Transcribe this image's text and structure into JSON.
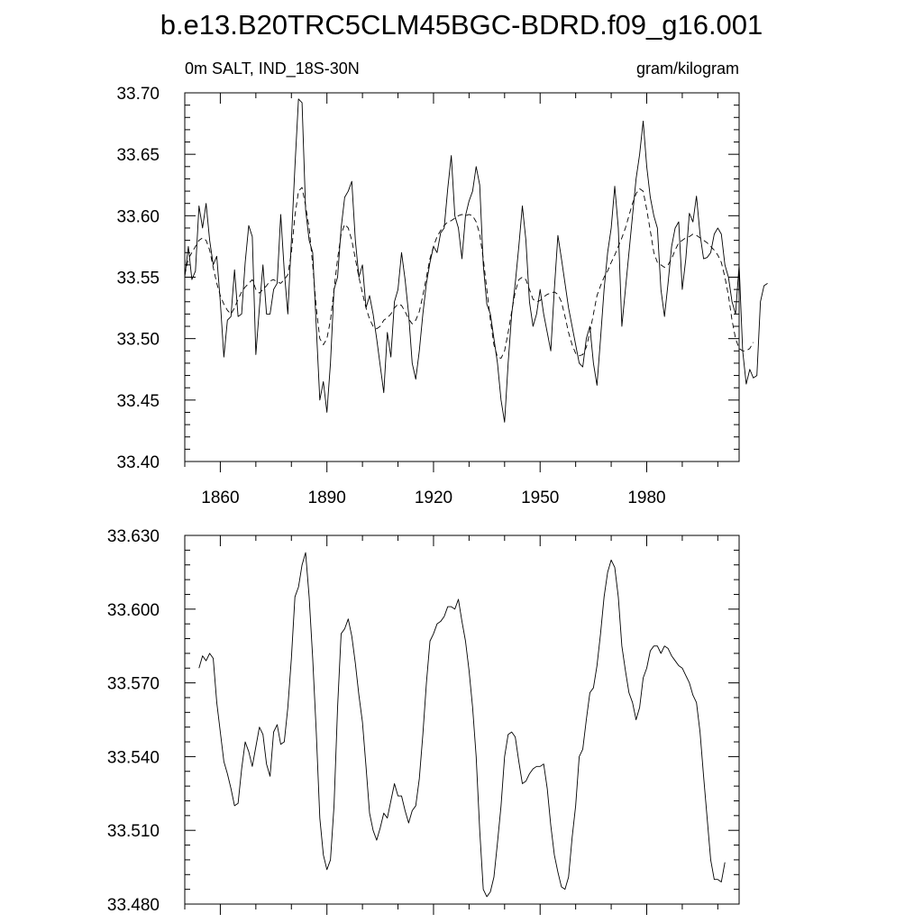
{
  "title": "b.e13.B20TRC5CLM45BGC-BDRD.f09_g16.001",
  "chart_data": [
    {
      "type": "line",
      "subtitle_left": "0m SALT, IND_18S-30N",
      "subtitle_right": "gram/kilogram",
      "xlim": [
        1850,
        2006
      ],
      "ylim": [
        33.4,
        33.7
      ],
      "x_ticks": [
        1860,
        1890,
        1920,
        1950,
        1980
      ],
      "x_tick_labels": [
        "1860",
        "1890",
        "1920",
        "1950",
        "1980"
      ],
      "y_ticks": [
        33.4,
        33.45,
        33.5,
        33.55,
        33.6,
        33.65,
        33.7
      ],
      "y_tick_labels": [
        "33.40",
        "33.45",
        "33.50",
        "33.55",
        "33.60",
        "33.65",
        "33.70"
      ],
      "x_start": 1850,
      "grid": false,
      "series": [
        {
          "style": "solid",
          "values": [
            33.55,
            33.575,
            33.548,
            33.555,
            33.608,
            33.59,
            33.61,
            33.58,
            33.56,
            33.567,
            33.53,
            33.485,
            33.515,
            33.518,
            33.556,
            33.518,
            33.52,
            33.562,
            33.592,
            33.583,
            33.487,
            33.525,
            33.56,
            33.52,
            33.52,
            33.54,
            33.545,
            33.601,
            33.555,
            33.52,
            33.58,
            33.64,
            33.695,
            33.692,
            33.605,
            33.58,
            33.57,
            33.51,
            33.45,
            33.465,
            33.44,
            33.48,
            33.54,
            33.55,
            33.59,
            33.615,
            33.62,
            33.628,
            33.58,
            33.55,
            33.56,
            33.525,
            33.535,
            33.52,
            33.5,
            33.478,
            33.456,
            33.505,
            33.485,
            33.53,
            33.54,
            33.57,
            33.548,
            33.52,
            33.48,
            33.467,
            33.49,
            33.52,
            33.545,
            33.562,
            33.575,
            33.57,
            33.586,
            33.59,
            33.622,
            33.649,
            33.6,
            33.59,
            33.565,
            33.6,
            33.612,
            33.62,
            33.64,
            33.625,
            33.56,
            33.528,
            33.52,
            33.5,
            33.48,
            33.45,
            33.432,
            33.48,
            33.52,
            33.545,
            33.575,
            33.608,
            33.58,
            33.53,
            33.51,
            33.52,
            33.54,
            33.52,
            33.505,
            33.49,
            33.54,
            33.584,
            33.565,
            33.545,
            33.525,
            33.51,
            33.495,
            33.48,
            33.477,
            33.5,
            33.51,
            33.48,
            33.462,
            33.5,
            33.54,
            33.57,
            33.59,
            33.624,
            33.59,
            33.51,
            33.54,
            33.57,
            33.6,
            33.63,
            33.65,
            33.677,
            33.64,
            33.615,
            33.6,
            33.59,
            33.54,
            33.518,
            33.545,
            33.575,
            33.59,
            33.595,
            33.54,
            33.565,
            33.602,
            33.595,
            33.616,
            33.585,
            33.565,
            33.566,
            33.57,
            33.585,
            33.59,
            33.585,
            33.56,
            33.55,
            33.53,
            33.52,
            33.56,
            33.49,
            33.463,
            33.475,
            33.468,
            33.47,
            33.53,
            33.543,
            33.545
          ]
        },
        {
          "style": "dashed",
          "values": [
            33.552,
            33.565,
            33.57,
            33.575,
            33.58,
            33.582,
            33.58,
            33.572,
            33.558,
            33.545,
            33.535,
            33.528,
            33.523,
            33.52,
            33.525,
            33.532,
            33.538,
            33.542,
            33.545,
            33.548,
            33.54,
            33.537,
            33.54,
            33.543,
            33.547,
            33.548,
            33.546,
            33.545,
            33.548,
            33.552,
            33.57,
            33.6,
            33.62,
            33.623,
            33.608,
            33.59,
            33.56,
            33.525,
            33.5,
            33.495,
            33.5,
            33.515,
            33.54,
            33.565,
            33.585,
            33.593,
            33.59,
            33.58,
            33.565,
            33.55,
            33.537,
            33.525,
            33.516,
            33.51,
            33.508,
            33.51,
            33.515,
            33.517,
            33.52,
            33.525,
            33.528,
            33.527,
            33.522,
            33.516,
            33.512,
            33.515,
            33.522,
            33.535,
            33.55,
            33.565,
            33.575,
            33.583,
            33.588,
            33.592,
            33.595,
            33.596,
            33.598,
            33.6,
            33.601,
            33.6,
            33.601,
            33.6,
            33.595,
            33.585,
            33.565,
            33.54,
            33.515,
            33.495,
            33.485,
            33.484,
            33.49,
            33.505,
            33.522,
            33.538,
            33.548,
            33.55,
            33.548,
            33.54,
            33.532,
            33.53,
            33.531,
            33.534,
            33.536,
            33.537,
            33.538,
            33.536,
            33.53,
            33.518,
            33.505,
            33.495,
            33.488,
            33.486,
            33.487,
            33.493,
            33.505,
            33.52,
            33.535,
            33.543,
            33.55,
            33.555,
            33.562,
            33.568,
            33.575,
            33.582,
            33.59,
            33.6,
            33.61,
            33.618,
            33.622,
            33.62,
            33.605,
            33.588,
            33.57,
            33.562,
            33.56,
            33.558,
            33.56,
            33.565,
            33.572,
            33.578,
            33.58,
            33.582,
            33.583,
            33.585,
            33.584,
            33.582,
            33.58,
            33.578,
            33.575,
            33.572,
            33.568,
            33.562,
            33.55,
            33.535,
            33.515,
            33.5,
            33.492,
            33.49,
            33.49,
            33.492,
            33.497
          ]
        }
      ]
    },
    {
      "type": "line",
      "xlim": [
        1850,
        2006
      ],
      "ylim": [
        33.48,
        33.63
      ],
      "x_ticks": [
        1860,
        1890,
        1920,
        1950,
        1980
      ],
      "y_ticks": [
        33.48,
        33.51,
        33.54,
        33.57,
        33.6,
        33.63
      ],
      "y_tick_labels": [
        "33.480",
        "33.510",
        "33.540",
        "33.570",
        "33.600",
        "33.630"
      ],
      "x_start": 1854,
      "grid": false,
      "series": [
        {
          "style": "solid",
          "values": [
            33.576,
            33.581,
            33.579,
            33.582,
            33.58,
            33.562,
            33.55,
            33.538,
            33.533,
            33.527,
            33.52,
            33.521,
            33.535,
            33.546,
            33.542,
            33.536,
            33.544,
            33.552,
            33.549,
            33.537,
            33.532,
            33.55,
            33.553,
            33.545,
            33.546,
            33.56,
            33.58,
            33.605,
            33.609,
            33.618,
            33.623,
            33.605,
            33.58,
            33.55,
            33.515,
            33.5,
            33.494,
            33.498,
            33.52,
            33.56,
            33.59,
            33.592,
            33.596,
            33.589,
            33.578,
            33.565,
            33.554,
            33.536,
            33.517,
            33.51,
            33.506,
            33.511,
            33.517,
            33.515,
            33.522,
            33.529,
            33.524,
            33.524,
            33.518,
            33.513,
            33.518,
            33.52,
            33.531,
            33.549,
            33.57,
            33.587,
            33.59,
            33.594,
            33.595,
            33.597,
            33.601,
            33.601,
            33.6,
            33.604,
            33.595,
            33.587,
            33.575,
            33.56,
            33.54,
            33.51,
            33.486,
            33.483,
            33.485,
            33.491,
            33.505,
            33.52,
            33.54,
            33.549,
            33.55,
            33.548,
            33.538,
            33.529,
            33.53,
            33.533,
            33.535,
            33.536,
            33.536,
            33.537,
            33.527,
            33.512,
            33.5,
            33.493,
            33.487,
            33.486,
            33.491,
            33.507,
            33.52,
            33.54,
            33.543,
            33.555,
            33.566,
            33.568,
            33.577,
            33.59,
            33.605,
            33.615,
            33.62,
            33.617,
            33.605,
            33.585,
            33.575,
            33.566,
            33.562,
            33.555,
            33.56,
            33.572,
            33.576,
            33.583,
            33.585,
            33.585,
            33.582,
            33.585,
            33.584,
            33.581,
            33.579,
            33.577,
            33.576,
            33.573,
            33.57,
            33.565,
            33.562,
            33.55,
            33.532,
            33.515,
            33.498,
            33.49,
            33.49,
            33.489,
            33.497
          ]
        }
      ]
    }
  ]
}
